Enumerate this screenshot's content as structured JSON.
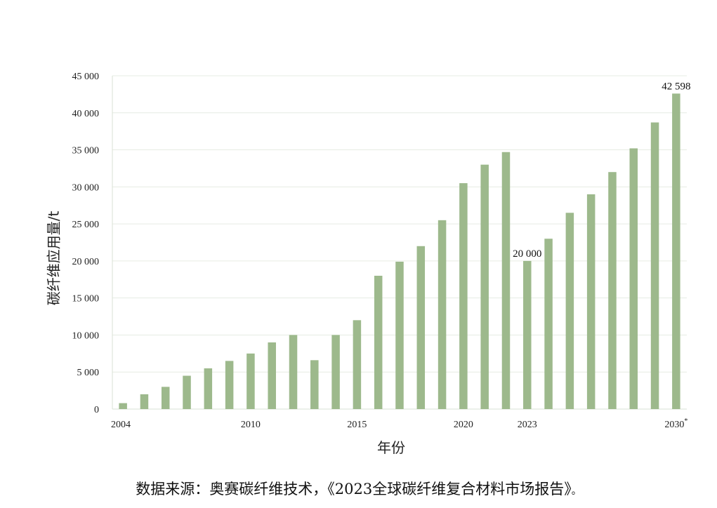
{
  "chart_data": {
    "type": "bar",
    "ylabel": "碳纤维应用量/t",
    "xlabel": "年份",
    "ylim": [
      0,
      45000
    ],
    "yticks": [
      0,
      5000,
      10000,
      15000,
      20000,
      25000,
      30000,
      35000,
      40000,
      45000
    ],
    "ytick_labels": [
      "0",
      "5 000",
      "10 000",
      "15 000",
      "20 000",
      "25 000",
      "30 000",
      "35 000",
      "40 000",
      "45 000"
    ],
    "categories": [
      "2004",
      "2005",
      "2006",
      "2007",
      "2008",
      "2009",
      "2010",
      "2011",
      "2012",
      "2013",
      "2014",
      "2015",
      "2016",
      "2017",
      "2018",
      "2019",
      "2020",
      "2021",
      "2022",
      "2023",
      "2024",
      "2025",
      "2026",
      "2027",
      "2028",
      "2029",
      "2030"
    ],
    "values": [
      800,
      2000,
      3000,
      4500,
      5500,
      6500,
      7500,
      9000,
      10000,
      6600,
      10000,
      12000,
      18000,
      19900,
      22000,
      25500,
      30500,
      33000,
      34700,
      20000,
      23000,
      26500,
      29000,
      32000,
      35200,
      38700,
      42598
    ],
    "x_tick_years": [
      "2004",
      "2010",
      "2015",
      "2020",
      "2023",
      "2030"
    ],
    "x_tick_labels": [
      "2004",
      "2010",
      "2015",
      "2020",
      "2023",
      "2030"
    ],
    "x_tick_marks": [
      "",
      "",
      "",
      "",
      "",
      "*"
    ],
    "data_labels": [
      {
        "category": "2023",
        "text": "20 000"
      },
      {
        "category": "2030",
        "text": "42 598"
      }
    ],
    "bar_color": "#9db98c",
    "grid": true
  },
  "source": {
    "text": "数据来源：奥赛碳纤维技术，《2023全球碳纤维复合材料市场报告》",
    "end": "。"
  }
}
